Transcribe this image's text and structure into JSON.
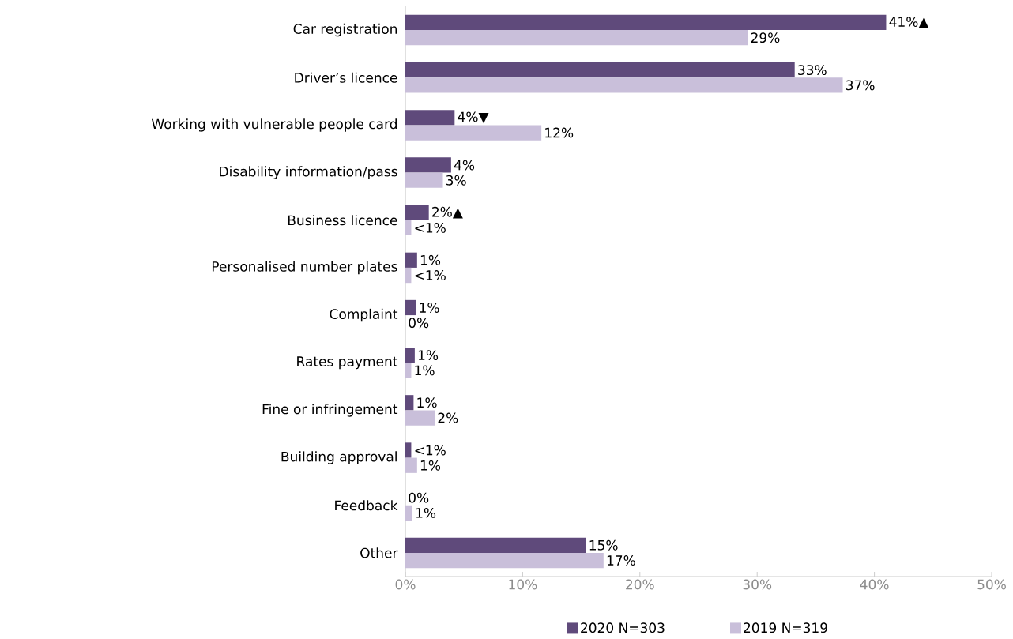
{
  "chart_data": {
    "type": "bar",
    "orientation": "horizontal",
    "categories": [
      "Car registration",
      "Driver’s licence",
      "Working with vulnerable people card",
      "Disability information/pass",
      "Business licence",
      "Personalised number plates",
      "Complaint",
      "Rates payment",
      "Fine or infringement",
      "Building approval",
      "Feedback",
      "Other"
    ],
    "series": [
      {
        "name": "2020 N=303",
        "color": "#5f4a7b",
        "values": [
          41.0,
          33.2,
          4.2,
          3.9,
          2.0,
          1.0,
          0.9,
          0.8,
          0.7,
          0.5,
          0,
          15.4
        ],
        "value_labels": [
          "41%▲",
          "33%",
          "4%▼",
          "4%",
          "2%▲",
          "1%",
          "1%",
          "1%",
          "1%",
          "<1%",
          "0%",
          "15%"
        ]
      },
      {
        "name": "2019 N=319",
        "color": "#c9bfda",
        "values": [
          29.2,
          37.3,
          11.6,
          3.2,
          0.5,
          0.5,
          0,
          0.5,
          2.5,
          1.0,
          0.6,
          16.9
        ],
        "value_labels": [
          "29%",
          "37%",
          "12%",
          "3%",
          "<1%",
          "<1%",
          "0%",
          "1%",
          "2%",
          "1%",
          "1%",
          "17%"
        ]
      }
    ],
    "xlim": [
      0,
      50
    ],
    "xticks": [
      {
        "value": 0,
        "label": "0%"
      },
      {
        "value": 10,
        "label": "10%"
      },
      {
        "value": 20,
        "label": "20%"
      },
      {
        "value": 30,
        "label": "30%"
      },
      {
        "value": 40,
        "label": "40%"
      },
      {
        "value": 50,
        "label": "50%"
      }
    ],
    "grid": false,
    "legend": "bottom"
  }
}
